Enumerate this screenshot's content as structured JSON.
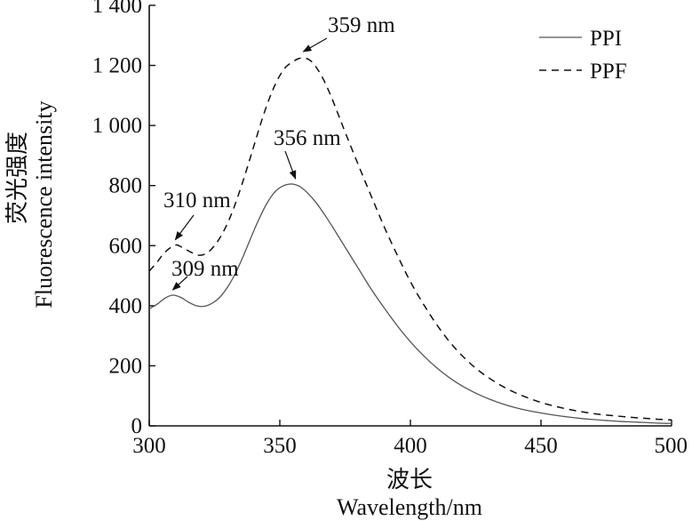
{
  "chart_data": {
    "type": "line",
    "xlabel_cn": "波长",
    "xlabel": "Wavelength/nm",
    "ylabel_cn": "荧光强度",
    "ylabel": "Fluorescence intensity",
    "xlim": [
      300,
      500
    ],
    "ylim": [
      0,
      1400
    ],
    "xticks": [
      300,
      350,
      400,
      450,
      500
    ],
    "yticks": [
      0,
      200,
      400,
      600,
      800,
      1000,
      1200,
      1400
    ],
    "ytick_labels": [
      "0",
      "200",
      "400",
      "600",
      "800",
      "1 000",
      "1 200",
      "1 400"
    ],
    "grid": false,
    "legend_position": "top-right",
    "series": [
      {
        "name": "PPI",
        "line_style": "solid",
        "color": "#555555",
        "x": [
          300,
          303,
          306,
          309,
          312,
          315,
          318,
          321,
          324,
          327,
          330,
          333,
          336,
          339,
          342,
          345,
          348,
          351,
          354,
          356,
          358,
          361,
          364,
          367,
          370,
          375,
          380,
          385,
          390,
          395,
          400,
          405,
          410,
          415,
          420,
          425,
          430,
          435,
          440,
          445,
          450,
          455,
          460,
          465,
          470,
          475,
          480,
          485,
          490,
          495,
          500
        ],
        "y": [
          390,
          405,
          425,
          435,
          428,
          412,
          400,
          398,
          408,
          428,
          462,
          508,
          565,
          628,
          688,
          740,
          778,
          798,
          805,
          803,
          795,
          772,
          742,
          705,
          665,
          595,
          525,
          455,
          392,
          333,
          280,
          234,
          194,
          160,
          132,
          109,
          90,
          74,
          61,
          51,
          43,
          36,
          30,
          25,
          21,
          18,
          15,
          13,
          11,
          9,
          8
        ]
      },
      {
        "name": "PPF",
        "line_style": "dashed",
        "color": "#111111",
        "x": [
          300,
          303,
          306,
          310,
          313,
          316,
          319,
          322,
          325,
          328,
          331,
          334,
          337,
          340,
          343,
          346,
          349,
          352,
          355,
          357,
          359,
          361,
          363,
          366,
          369,
          372,
          375,
          380,
          385,
          390,
          395,
          400,
          405,
          410,
          415,
          420,
          425,
          430,
          435,
          440,
          445,
          450,
          455,
          460,
          465,
          470,
          475,
          480,
          485,
          490,
          495,
          500
        ],
        "y": [
          515,
          545,
          578,
          602,
          592,
          578,
          568,
          575,
          600,
          640,
          695,
          765,
          845,
          930,
          1015,
          1090,
          1150,
          1192,
          1212,
          1222,
          1225,
          1220,
          1205,
          1165,
          1110,
          1045,
          978,
          870,
          765,
          662,
          568,
          480,
          405,
          338,
          280,
          232,
          192,
          160,
          133,
          111,
          93,
          78,
          66,
          56,
          48,
          41,
          36,
          32,
          28,
          25,
          22,
          20
        ]
      }
    ],
    "annotations": [
      {
        "text": "359 nm",
        "x": 359,
        "y": 1225
      },
      {
        "text": "356 nm",
        "x": 356,
        "y": 805
      },
      {
        "text": "310 nm",
        "x": 310,
        "y": 602
      },
      {
        "text": "309 nm",
        "x": 309,
        "y": 435
      }
    ]
  }
}
